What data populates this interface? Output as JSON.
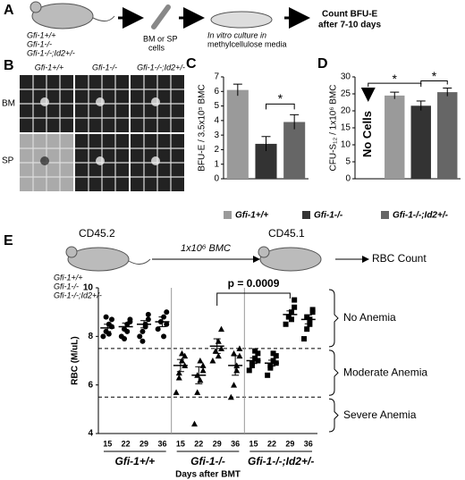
{
  "figure": {
    "panel_a": {
      "label": "A",
      "genotypes": [
        "Gfi-1+/+",
        "Gfi-1-/-",
        "Gfi-1-/-;Id2+/-"
      ],
      "step1": [
        "BM or SP",
        "cells"
      ],
      "step2": [
        "In vitro culture in",
        "methylcellulose media"
      ],
      "step3": [
        "Count BFU-E",
        "after 7-10 days"
      ]
    },
    "panel_b": {
      "label": "B",
      "columns": [
        "Gfi-1+/+",
        "Gfi-1-/-",
        "Gfi-1-/-;Id2+/-"
      ],
      "rows": [
        "BM",
        "SP"
      ]
    },
    "panel_e": {
      "label": "E",
      "donor": "CD45.2",
      "recipient": "CD45.1",
      "transfer": "1x10⁶ BMC",
      "genotypes": [
        "Gfi-1+/+",
        "Gfi-1-/-",
        "Gfi-1-/-;Id2+/-"
      ],
      "readout": "RBC Count"
    }
  },
  "chart_data": [
    {
      "type": "bar",
      "label": "C",
      "ylabel": "BFU-E / 3.5x10⁵ BMC",
      "categories": [
        "Gfi-1+/+",
        "Gfi-1-/-",
        "Gfi-1-/-;Id2+/-"
      ],
      "colors": [
        "#9a9a9a",
        "#333333",
        "#666666"
      ],
      "values": [
        6.1,
        2.4,
        3.9
      ],
      "errors": [
        0.4,
        0.5,
        0.5
      ],
      "ylim": [
        0,
        7
      ],
      "yticks": [
        0,
        1,
        2,
        3,
        4,
        5,
        6,
        7
      ],
      "annotations": [
        "*"
      ]
    },
    {
      "type": "bar",
      "label": "D",
      "ylabel": "CFU-S₁₂ / 1x10⁶ BMC",
      "note": "No Cells",
      "colors": [
        "#9a9a9a",
        "#333333",
        "#666666"
      ],
      "values": [
        24.5,
        21.5,
        25.5
      ],
      "errors": [
        1.0,
        1.4,
        1.2
      ],
      "ylim": [
        0,
        30
      ],
      "yticks": [
        0,
        5,
        10,
        15,
        20,
        25,
        30
      ],
      "annotations": [
        "*",
        "*"
      ]
    },
    {
      "type": "scatter",
      "ylabel": "RBC (M/uL)",
      "xlabel": "Days after BMT",
      "categories": [
        15,
        22,
        29,
        36,
        15,
        22,
        29,
        36,
        15,
        22,
        29,
        36
      ],
      "groups": [
        {
          "name": "Gfi-1+/+",
          "marker": "circle",
          "points": [
            [
              8.0,
              8.2,
              8.5,
              8.7,
              8.4,
              8.1,
              8.8
            ],
            [
              8.0,
              8.3,
              8.5,
              8.7,
              8.6,
              8.2,
              7.9
            ],
            [
              8.0,
              8.2,
              8.5,
              8.7,
              8.9,
              8.4,
              7.8
            ],
            [
              8.3,
              8.6,
              8.8,
              9.0,
              8.5,
              8.0
            ]
          ],
          "means": [
            8.35,
            8.4,
            8.5,
            8.6
          ],
          "errors": [
            0.15,
            0.15,
            0.15,
            0.2
          ]
        },
        {
          "name": "Gfi-1-/-",
          "marker": "triangle",
          "points": [
            [
              5.7,
              6.5,
              7.0,
              7.2,
              6.8,
              7.3,
              6.3
            ],
            [
              4.4,
              5.7,
              6.2,
              6.6,
              6.8,
              7.0,
              6.4
            ],
            [
              7.0,
              7.4,
              7.8,
              8.3,
              7.5,
              7.2
            ],
            [
              5.5,
              6.0,
              6.8,
              7.2,
              7.5,
              6.6,
              7.3
            ]
          ],
          "means": [
            6.8,
            6.4,
            7.6,
            6.8
          ],
          "errors": [
            0.25,
            0.35,
            0.3,
            0.4
          ]
        },
        {
          "name": "Gfi-1-/-;Id2+/-",
          "marker": "square",
          "points": [
            [
              6.6,
              6.9,
              7.1,
              7.3,
              7.0,
              7.4,
              6.8
            ],
            [
              6.4,
              6.8,
              7.0,
              7.2,
              6.9,
              7.3,
              6.7
            ],
            [
              8.5,
              8.8,
              9.0,
              9.2,
              9.5,
              8.7
            ],
            [
              7.9,
              8.3,
              8.7,
              9.0,
              9.1,
              8.5,
              8.8
            ]
          ],
          "means": [
            7.0,
            6.9,
            8.9,
            8.7
          ],
          "errors": [
            0.12,
            0.12,
            0.15,
            0.18
          ]
        }
      ],
      "ylim": [
        4,
        10
      ],
      "yticks": [
        4,
        6,
        8,
        10
      ],
      "thresholds": [
        7.5,
        5.5
      ],
      "ranges": [
        "No Anemia",
        "Moderate Anemia",
        "Severe Anemia"
      ],
      "annotation": "p = 0.0009"
    }
  ]
}
